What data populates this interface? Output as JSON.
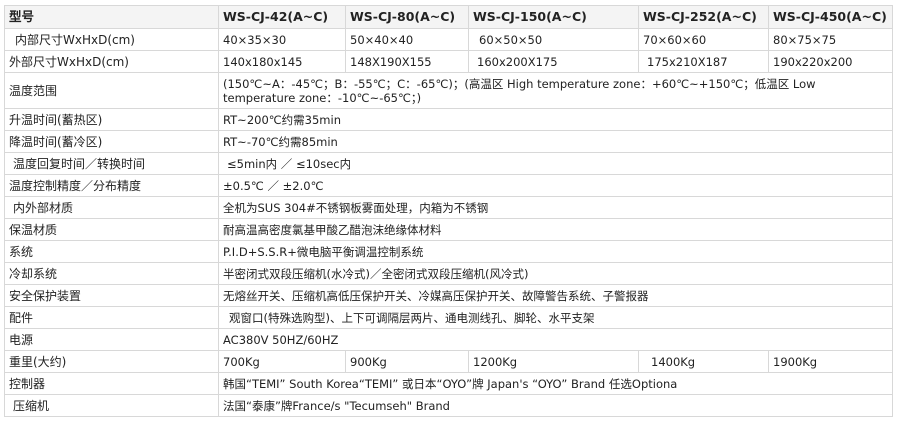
{
  "header": {
    "label": "型号",
    "models": [
      "WS-CJ-42(A~C)",
      "WS-CJ-80(A~C)",
      "WS-CJ-150(A~C)",
      "WS-CJ-252(A~C)",
      "WS-CJ-450(A~C)"
    ]
  },
  "rows": {
    "inner": {
      "label": "内部尺寸WxHxD(cm)",
      "values": [
        "40×35×30",
        "50×40×40",
        "60×50×50",
        "70×60×60",
        "80×75×75"
      ]
    },
    "outer": {
      "label": "外部尺寸WxHxD(cm)",
      "values": [
        "140x180x145",
        "148X190X155",
        "160x200X175",
        "175x210X187",
        "190x220x200"
      ]
    },
    "temp_range": {
      "label": "温度范围",
      "value": "(150℃~A：-45℃；B：-55℃；C：-65℃)；(高温区  High temperature zone：+60℃~+150℃；低温区  Low temperature zone：-10℃~-65℃；)"
    },
    "heat_time": {
      "label": "升温时间(蓄热区)",
      "value": "RT~200℃约需35min"
    },
    "cool_time": {
      "label": "降温时间(蓄冷区)",
      "value": "RT~-70℃约需85min"
    },
    "recovery": {
      "label": "温度回复时间／转换时间",
      "value": "≤5min内  ／  ≤10sec内"
    },
    "accuracy": {
      "label": "温度控制精度／分布精度",
      "value": "±0.5℃ ／  ±2.0℃"
    },
    "material": {
      "label": "内外部材质",
      "value": "全机为SUS 304#不锈钢板雾面处理，内箱为不锈钢"
    },
    "insulation": {
      "label": "保温材质",
      "value": "耐高温高密度氯基甲酸乙醋泡沫绝缘体材料"
    },
    "system": {
      "label": "系统",
      "value": "P.I.D+S.S.R+微电脑平衡调温控制系统"
    },
    "cooling": {
      "label": "冷却系统",
      "value": "半密闭式双段压缩机(水冷式)／全密闭式双段压缩机(风冷式)"
    },
    "safety": {
      "label": "安全保护装置",
      "value": "无熔丝开关、压缩机高低压保护开关、冷媒高压保护开关、故障警告系统、子警报器"
    },
    "accessories": {
      "label": "配件",
      "value": "观窗口(特殊选购型)、上下可调隔层两片、通电测线孔、脚轮、水平支架"
    },
    "power": {
      "label": "电源",
      "value": "AC380V 50HZ/60HZ"
    },
    "weight": {
      "label": "重里(大约)",
      "values": [
        "700Kg",
        "900Kg",
        "1200Kg",
        "1400Kg",
        "1900Kg"
      ]
    },
    "controller": {
      "label": "控制器",
      "value": "韩国“TEMI” South Korea“TEMI” 或日本“OYO”牌  Japan's “OYO” Brand    任选Optiona"
    },
    "compressor": {
      "label": "压缩机",
      "value": "法国“泰康”牌France/s \"Tecumseh\" Brand"
    }
  }
}
